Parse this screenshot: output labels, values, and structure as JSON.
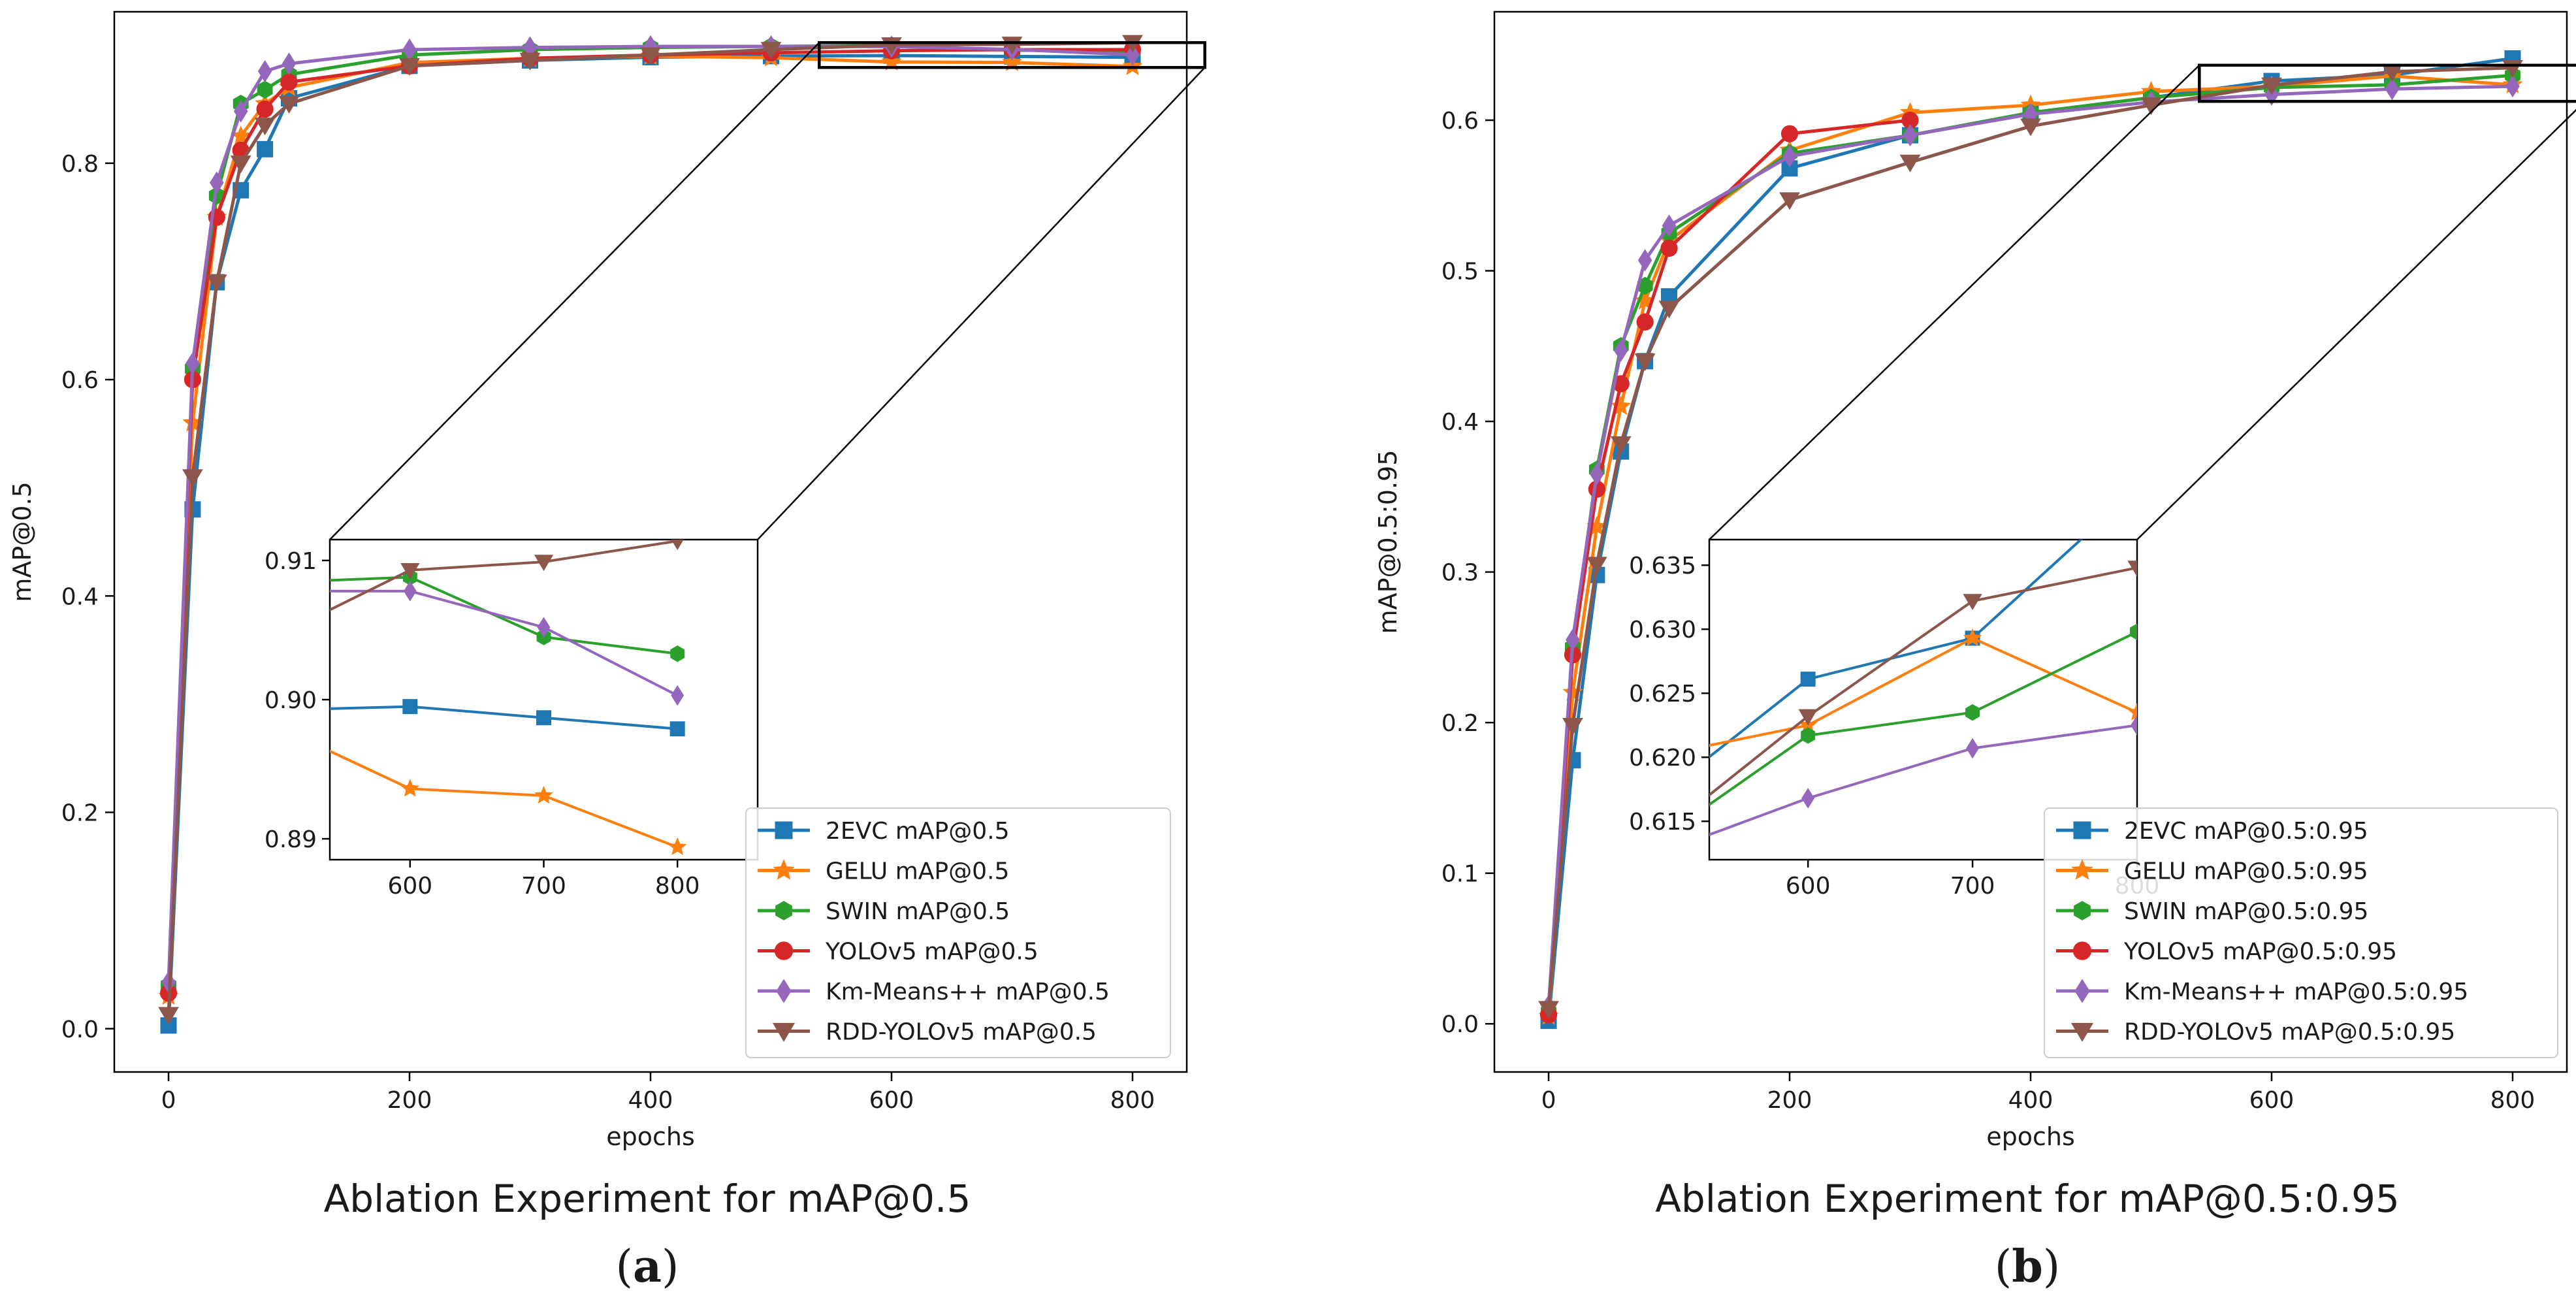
{
  "colors": {
    "2EVC": "#1f77b4",
    "GELU": "#ff7f0e",
    "SWIN": "#2ca02c",
    "YOLOv5": "#d62728",
    "Km-Means++": "#9467bd",
    "RDD-YOLOv5": "#8c564b"
  },
  "chart_data": [
    {
      "id": "a",
      "type": "line",
      "panel_label": "a",
      "caption": "Ablation Experiment for mAP@0.5",
      "xlabel": "epochs",
      "ylabel": "mAP@0.5",
      "xlim": [
        -45,
        845
      ],
      "ylim": [
        -0.04,
        0.94
      ],
      "xticks": [
        0,
        200,
        400,
        600,
        800
      ],
      "yticks": [
        0.0,
        0.2,
        0.4,
        0.6,
        0.8
      ],
      "xtick_labels": [
        "0",
        "200",
        "400",
        "600",
        "800"
      ],
      "ytick_labels": [
        "0.0",
        "0.2",
        "0.4",
        "0.6",
        "0.8"
      ],
      "legend_position": "lower-right",
      "x": [
        0,
        20,
        40,
        60,
        80,
        100,
        200,
        300,
        400,
        500,
        600,
        700,
        800
      ],
      "series": [
        {
          "key": "2EVC",
          "name": "2EVC mAP@0.5",
          "marker": "square",
          "values": [
            0.003,
            0.48,
            0.69,
            0.775,
            0.813,
            0.86,
            0.89,
            0.895,
            0.898,
            0.899,
            0.8995,
            0.8987,
            0.8979
          ]
        },
        {
          "key": "GELU",
          "name": "GELU mAP@0.5",
          "marker": "star",
          "values": [
            0.03,
            0.56,
            0.75,
            0.825,
            0.855,
            0.87,
            0.893,
            0.897,
            0.899,
            0.8975,
            0.8936,
            0.8931,
            0.8894
          ]
        },
        {
          "key": "SWIN",
          "name": "SWIN mAP@0.5",
          "marker": "hexagon",
          "values": [
            0.04,
            0.61,
            0.77,
            0.855,
            0.868,
            0.882,
            0.9,
            0.905,
            0.907,
            0.908,
            0.9088,
            0.9045,
            0.9033
          ]
        },
        {
          "key": "YOLOv5",
          "name": "YOLOv5 mAP@0.5",
          "marker": "circle",
          "values": [
            0.033,
            0.6,
            0.75,
            0.812,
            0.85,
            0.875,
            0.89,
            0.897,
            0.9,
            0.902,
            0.904,
            0.905,
            0.905
          ]
        },
        {
          "key": "Km-Means++",
          "name": "Km-Means++ mAP@0.5",
          "marker": "diamond",
          "values": [
            0.043,
            0.615,
            0.782,
            0.848,
            0.885,
            0.892,
            0.905,
            0.907,
            0.908,
            0.908,
            0.9078,
            0.9052,
            0.9003
          ]
        },
        {
          "key": "RDD-YOLOv5",
          "name": "RDD-YOLOv5 mAP@0.5",
          "marker": "triangle_down",
          "values": [
            0.013,
            0.51,
            0.69,
            0.8,
            0.835,
            0.855,
            0.89,
            0.895,
            0.9,
            0.905,
            0.9093,
            0.9099,
            0.9114
          ]
        }
      ],
      "zoom_box": {
        "xlim": [
          540,
          860
        ],
        "ylim": [
          0.8885,
          0.9115
        ]
      },
      "inset": {
        "xlim": [
          540,
          860
        ],
        "ylim": [
          0.8885,
          0.9115
        ],
        "xticks": [
          600,
          700,
          800
        ],
        "xtick_labels": [
          "600",
          "700",
          "800"
        ],
        "yticks": [
          0.89,
          0.9,
          0.91
        ],
        "ytick_labels": [
          "0.89",
          "0.90",
          "0.91"
        ],
        "x": [
          520,
          600,
          700,
          800
        ],
        "series": [
          {
            "key": "2EVC",
            "values": [
              0.8993,
              0.8995,
              0.8987,
              0.8979
            ]
          },
          {
            "key": "GELU",
            "values": [
              0.8972,
              0.8936,
              0.8931,
              0.8894
            ]
          },
          {
            "key": "SWIN",
            "values": [
              0.9085,
              0.9088,
              0.9045,
              0.9033
            ]
          },
          {
            "key": "Km-Means++",
            "values": [
              0.9078,
              0.9078,
              0.9052,
              0.9003
            ]
          },
          {
            "key": "RDD-YOLOv5",
            "values": [
              0.9055,
              0.9093,
              0.9099,
              0.9114
            ]
          }
        ]
      }
    },
    {
      "id": "b",
      "type": "line",
      "panel_label": "b",
      "caption": "Ablation Experiment for mAP@0.5:0.95",
      "xlabel": "epochs",
      "ylabel": "mAP@0.5:0.95",
      "xlim": [
        -45,
        845
      ],
      "ylim": [
        -0.032,
        0.672
      ],
      "xticks": [
        0,
        200,
        400,
        600,
        800
      ],
      "yticks": [
        0.0,
        0.1,
        0.2,
        0.3,
        0.4,
        0.5,
        0.6
      ],
      "xtick_labels": [
        "0",
        "200",
        "400",
        "600",
        "800"
      ],
      "ytick_labels": [
        "0.0",
        "0.1",
        "0.2",
        "0.3",
        "0.4",
        "0.5",
        "0.6"
      ],
      "legend_position": "lower-right",
      "x": [
        0,
        20,
        40,
        60,
        80,
        100,
        200,
        300,
        400,
        500,
        600,
        700,
        800
      ],
      "series": [
        {
          "key": "2EVC",
          "name": "2EVC mAP@0.5:0.95",
          "marker": "square",
          "values": [
            0.002,
            0.175,
            0.298,
            0.38,
            0.44,
            0.483,
            0.568,
            0.59,
            0.605,
            0.615,
            0.626,
            0.63,
            0.641
          ]
        },
        {
          "key": "GELU",
          "name": "GELU mAP@0.5:0.95",
          "marker": "star",
          "values": [
            0.005,
            0.22,
            0.33,
            0.41,
            0.48,
            0.52,
            0.58,
            0.605,
            0.61,
            0.619,
            0.6225,
            0.6293,
            0.6235
          ]
        },
        {
          "key": "SWIN",
          "name": "SWIN mAP@0.5:0.95",
          "marker": "hexagon",
          "values": [
            0.008,
            0.25,
            0.368,
            0.45,
            0.49,
            0.525,
            0.578,
            0.59,
            0.605,
            0.615,
            0.6217,
            0.6235,
            0.6298
          ]
        },
        {
          "key": "YOLOv5",
          "name": "YOLOv5 mAP@0.5:0.95",
          "marker": "circle",
          "values": [
            0.006,
            0.245,
            0.355,
            0.425,
            0.466,
            0.515,
            0.591,
            0.6
          ],
          "x": [
            0,
            20,
            40,
            60,
            80,
            100,
            200,
            300
          ]
        },
        {
          "key": "Km-Means++",
          "name": "Km-Means++ mAP@0.5:0.95",
          "marker": "diamond",
          "values": [
            0.012,
            0.255,
            0.365,
            0.447,
            0.507,
            0.53,
            0.576,
            0.59,
            0.604,
            0.612,
            0.617,
            0.6207,
            0.6225
          ]
        },
        {
          "key": "RDD-YOLOv5",
          "name": "RDD-YOLOv5 mAP@0.5:0.95",
          "marker": "triangle_down",
          "values": [
            0.01,
            0.198,
            0.305,
            0.385,
            0.44,
            0.475,
            0.547,
            0.572,
            0.596,
            0.61,
            0.6232,
            0.6322,
            0.6348
          ]
        }
      ],
      "zoom_box": {
        "xlim": [
          540,
          860
        ],
        "ylim": [
          0.6125,
          0.6365
        ]
      },
      "inset": {
        "xlim": [
          540,
          800
        ],
        "ylim": [
          0.612,
          0.637
        ],
        "xticks": [
          600,
          700,
          800
        ],
        "xtick_labels": [
          "600",
          "700",
          "800"
        ],
        "yticks": [
          0.615,
          0.62,
          0.625,
          0.63,
          0.635
        ],
        "ytick_labels": [
          "0.615",
          "0.620",
          "0.625",
          "0.630",
          "0.635"
        ],
        "x": [
          520,
          600,
          700,
          800
        ],
        "series": [
          {
            "key": "2EVC",
            "values": [
              0.618,
              0.6261,
              0.6293,
              0.641
            ]
          },
          {
            "key": "GELU",
            "values": [
              0.6204,
              0.6225,
              0.6293,
              0.6235
            ]
          },
          {
            "key": "SWIN",
            "values": [
              0.6145,
              0.6217,
              0.6235,
              0.6298
            ]
          },
          {
            "key": "Km-Means++",
            "values": [
              0.613,
              0.6168,
              0.6207,
              0.6225
            ]
          },
          {
            "key": "RDD-YOLOv5",
            "values": [
              0.615,
              0.6232,
              0.6322,
              0.6348
            ]
          }
        ]
      }
    }
  ]
}
